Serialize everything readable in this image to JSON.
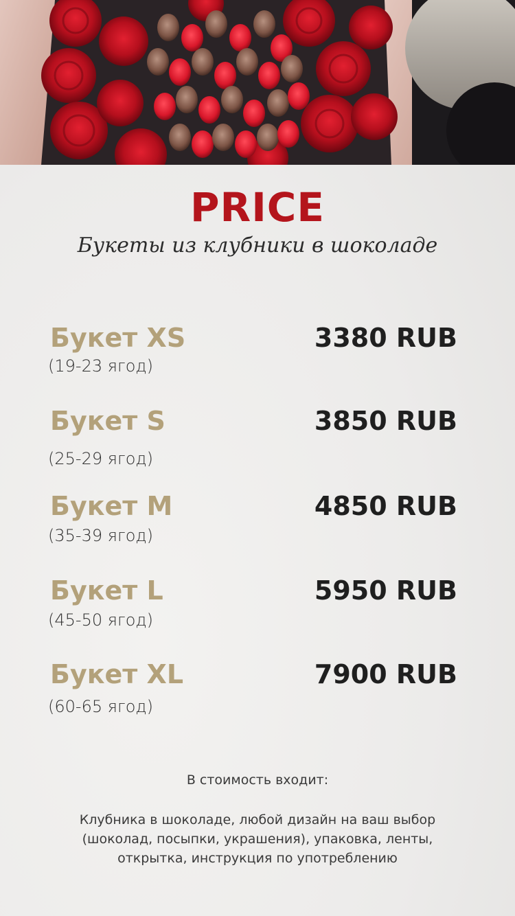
{
  "header": {
    "title": "PRICE",
    "subtitle": "Букеты из клубники в шоколаде"
  },
  "items": [
    {
      "name": "Букет XS",
      "count": "(19-23 ягод)",
      "price": "3380 RUB"
    },
    {
      "name": "Букет  S",
      "count": "(25-29 ягод)",
      "price": "3850 RUB"
    },
    {
      "name": "Букет M",
      "count": "(35-39 ягод)",
      "price": "4850 RUB"
    },
    {
      "name": "Букет L",
      "count": "(45-50 ягод)",
      "price": "5950 RUB"
    },
    {
      "name": "Букет XL",
      "count": "(60-65 ягод)",
      "price": "7900 RUB"
    }
  ],
  "note": {
    "heading": "В стоимость входит:",
    "text": "Клубника в шоколаде, любой дизайн на ваш выбор (шоколад, посыпки, украшения), упаковка, ленты, открытка, инструкция по употреблению"
  },
  "colors": {
    "title": "#b4151c",
    "item_name": "#b3a17a",
    "price": "#1f1f1f"
  }
}
